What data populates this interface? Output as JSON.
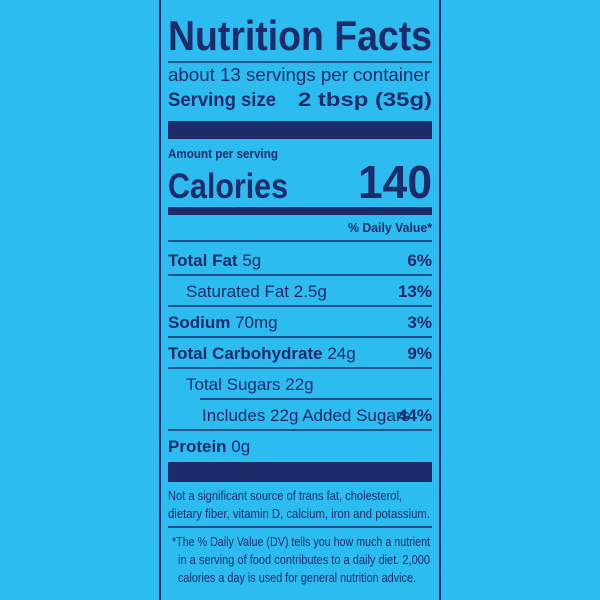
{
  "header": {
    "title": "Nutrition Facts",
    "servings": "about 13 servings per container",
    "serving_size_label": "Serving size",
    "serving_size_value": "2 tbsp (35g)"
  },
  "calories": {
    "amount_label": "Amount per serving",
    "label": "Calories",
    "value": "140"
  },
  "daily_value_header": "% Daily Value*",
  "nutrients": [
    {
      "name": "Total Fat",
      "amount": "5g",
      "dv": "6%"
    },
    {
      "name": "Saturated Fat",
      "amount": "2.5g",
      "dv": "13%"
    },
    {
      "name": "Sodium",
      "amount": "70mg",
      "dv": "3%"
    },
    {
      "name": "Total Carbohydrate",
      "amount": "24g",
      "dv": "9%"
    },
    {
      "name": "Total Sugars",
      "amount": "22g"
    },
    {
      "name": "Includes 22g Added Sugars",
      "dv": "44%"
    },
    {
      "name": "Protein",
      "amount": "0g"
    }
  ],
  "footnotes": [
    [
      "Not a significant source of trans fat, cholesterol,",
      "dietary fiber, vitamin D, calcium, iron and potassium."
    ],
    [
      "*The % Daily Value (DV) tells you how much a nutrient",
      "in a serving of food contributes to a daily diet. 2,000",
      "calories a day is used for general nutrition advice."
    ]
  ]
}
